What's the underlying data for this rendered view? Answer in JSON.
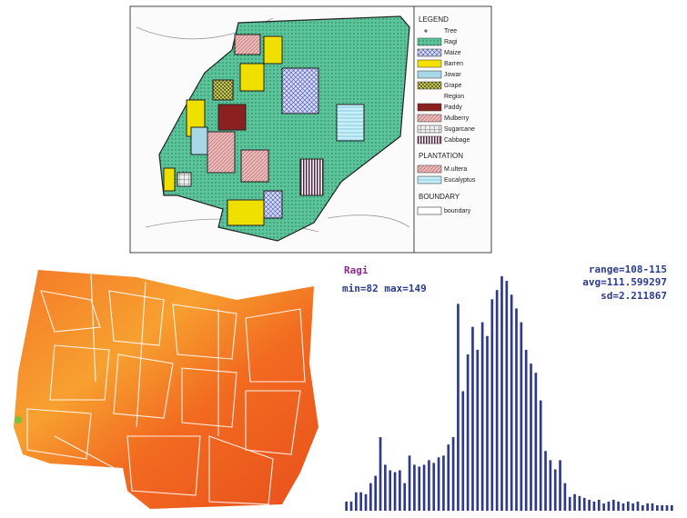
{
  "map_legend": {
    "title": "LEGEND",
    "items": [
      "Tree",
      "Ragi",
      "Maize",
      "Barren",
      "Jowar",
      "Grape",
      "Region",
      "Paddy",
      "Mulberry",
      "Sugarcane",
      "Cabbage"
    ],
    "plantation_title": "PLANTATION",
    "plantation_items": [
      "M.ultera",
      "Eucalyptus"
    ],
    "boundary_title": "BOUNDARY",
    "boundary_items": [
      "boundary"
    ]
  },
  "chart_data": {
    "type": "bar",
    "title": "Ragi",
    "annotations": [
      "min=82 max=149",
      "range=108-115",
      "avg=111.599297",
      "sd=2.211867"
    ],
    "color": "#2e3a87",
    "values": [
      10,
      10,
      20,
      20,
      18,
      30,
      38,
      80,
      50,
      44,
      42,
      44,
      30,
      60,
      50,
      48,
      50,
      55,
      52,
      58,
      60,
      72,
      80,
      225,
      130,
      170,
      200,
      175,
      205,
      190,
      230,
      240,
      255,
      250,
      235,
      220,
      205,
      175,
      160,
      150,
      120,
      65,
      55,
      45,
      55,
      30,
      15,
      18,
      16,
      14,
      12,
      10,
      12,
      8,
      10,
      12,
      10,
      8,
      10,
      8,
      10,
      6,
      8,
      8,
      6,
      6,
      6,
      6
    ]
  }
}
